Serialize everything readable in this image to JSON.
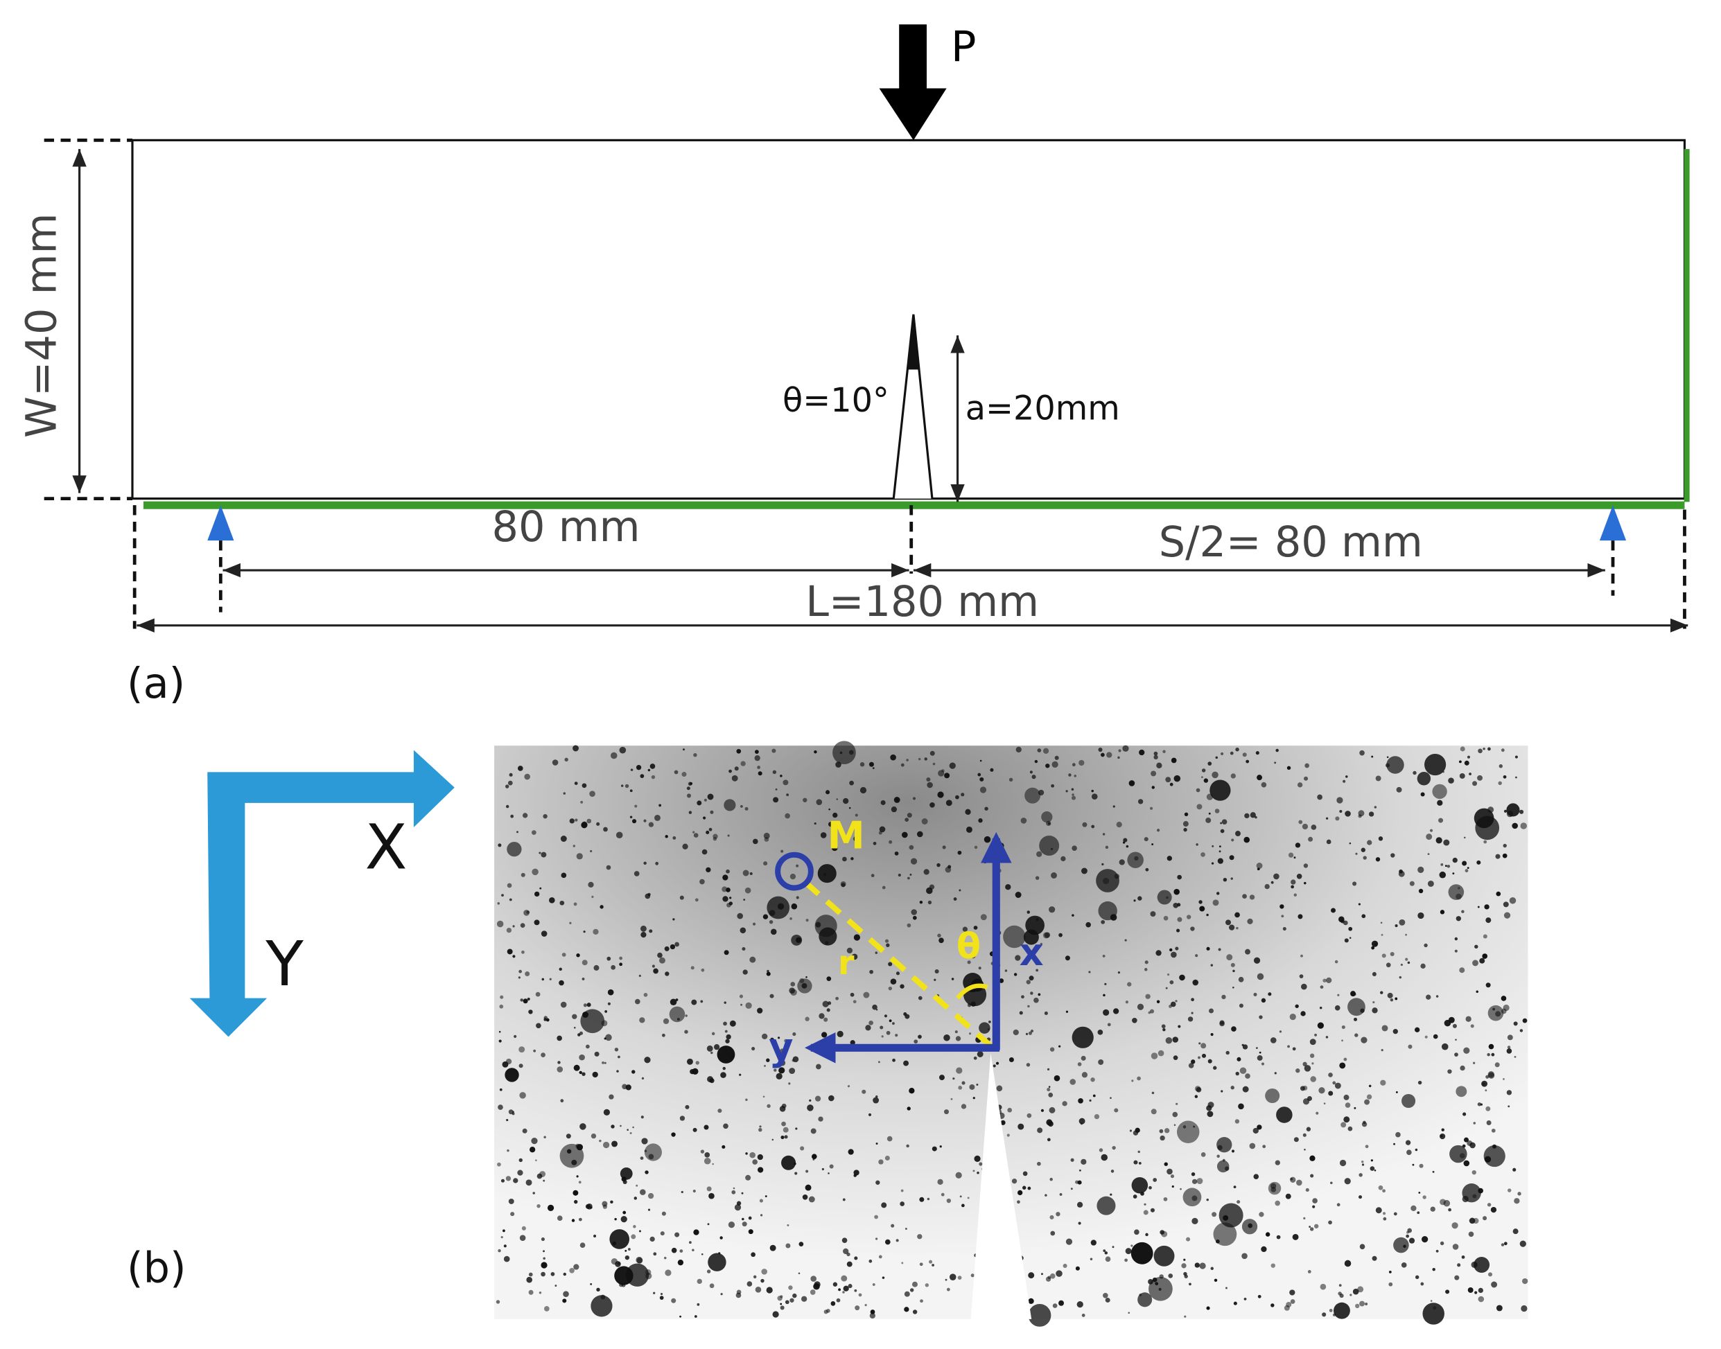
{
  "panel_a": {
    "label": "(a)",
    "load": "P",
    "width": "W=40 mm",
    "notch_angle": "θ=10°",
    "notch_depth": "a=20mm",
    "left_span": "80 mm",
    "half_span": "S/2= 80 mm",
    "length": "L=180 mm"
  },
  "panel_b": {
    "label": "(b)",
    "global_axes": {
      "x": "X",
      "y": "Y"
    },
    "point": "M",
    "radius": "r",
    "angle": "θ",
    "local_axes": {
      "x": "x",
      "y": "y"
    }
  }
}
